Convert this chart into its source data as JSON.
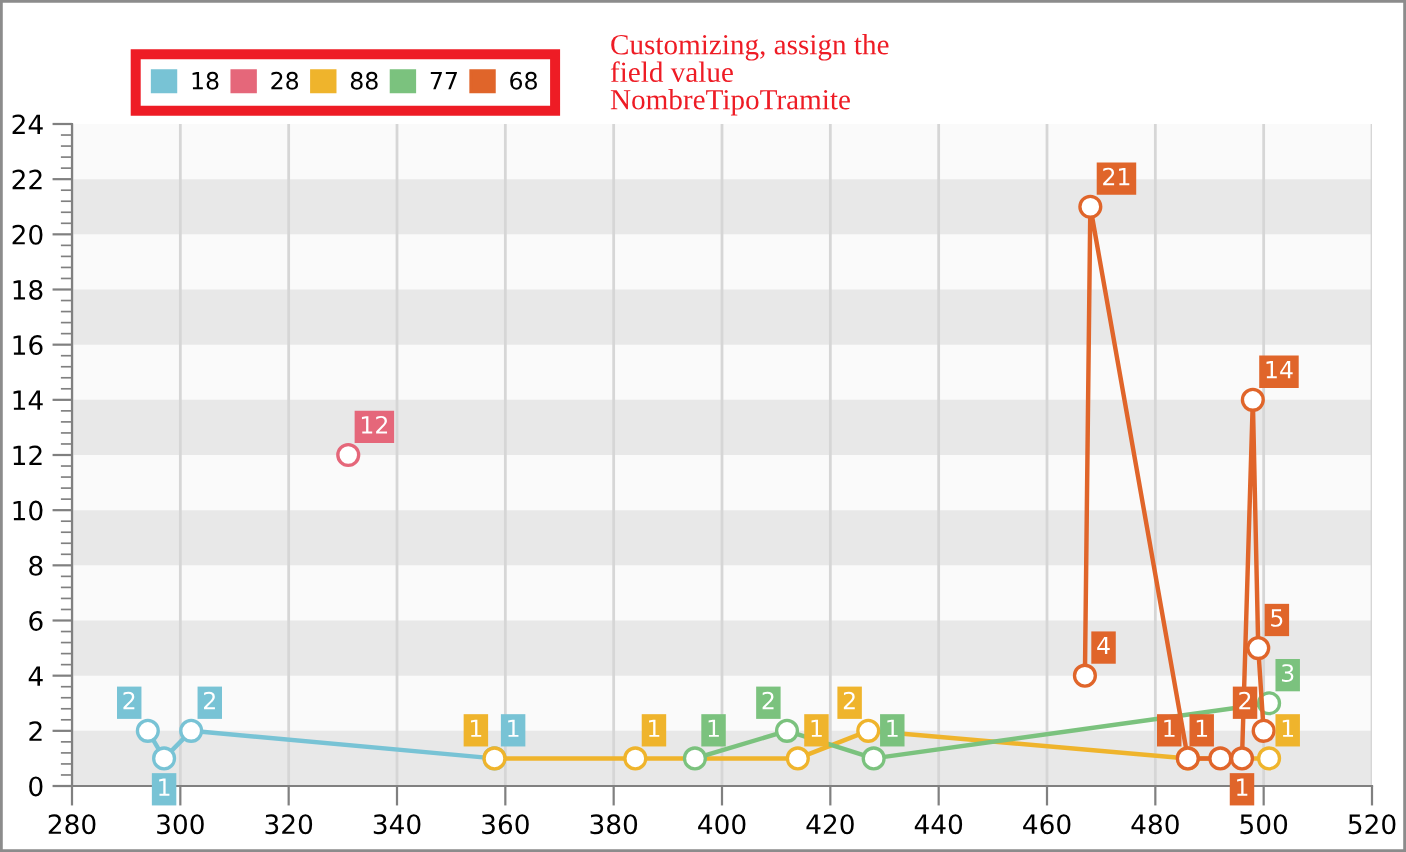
{
  "chart_data": {
    "type": "line",
    "xlim": [
      280,
      520
    ],
    "xticks": [
      280,
      300,
      320,
      340,
      360,
      380,
      400,
      420,
      440,
      460,
      480,
      500,
      520
    ],
    "ylim": [
      0,
      24
    ],
    "yticks": [
      0,
      2,
      4,
      6,
      8,
      10,
      12,
      14,
      16,
      18,
      20,
      22,
      24
    ],
    "grid": true,
    "legend": "top left",
    "marker": "circle",
    "line_style": "solid",
    "annotations": [
      "Customizing, assign the\nfield value\nNombreTipoTramite"
    ],
    "series": [
      {
        "name": "18",
        "color": "#78c3d5",
        "x": [
          294,
          297,
          302,
          358
        ],
        "values": [
          2,
          1,
          2,
          1
        ],
        "value_labels": [
          "2",
          "1",
          "2",
          "1"
        ]
      },
      {
        "name": "28",
        "color": "#e5677a",
        "x": [
          331
        ],
        "values": [
          12
        ],
        "value_labels": [
          "12"
        ]
      },
      {
        "name": "88",
        "color": "#efb42c",
        "x": [
          358,
          384,
          414,
          427,
          486,
          501
        ],
        "values": [
          1,
          1,
          1,
          2,
          1,
          1
        ],
        "value_labels": [
          "1",
          "1",
          "1",
          "2",
          null,
          "1"
        ]
      },
      {
        "name": "77",
        "color": "#7bc27e",
        "x": [
          395,
          412,
          428,
          501
        ],
        "values": [
          1,
          2,
          1,
          3
        ],
        "value_labels": [
          "1",
          "2",
          "1",
          "3"
        ]
      },
      {
        "name": "68",
        "color": "#e0652a",
        "x": [
          467,
          468,
          486,
          492,
          496,
          498,
          499,
          500
        ],
        "values": [
          4,
          21,
          1,
          1,
          1,
          14,
          5,
          2
        ],
        "value_labels": [
          "4",
          "21",
          "1",
          "1",
          "1",
          "14",
          "5",
          "2"
        ]
      }
    ]
  }
}
